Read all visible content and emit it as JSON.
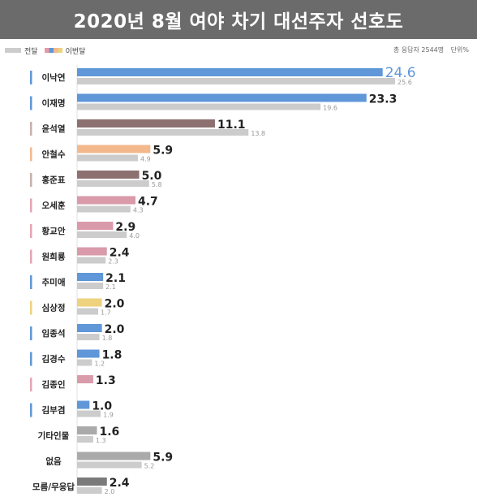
{
  "header": {
    "title": "2020년 8월 여야 차기 대선주자 선호도"
  },
  "legend": {
    "previous_label": "전달",
    "current_label": "이번달"
  },
  "meta": {
    "sample": "총 응답자 2544명",
    "unit": "단위%"
  },
  "chart_data": {
    "type": "bar",
    "orientation": "horizontal",
    "title": "2020년 8월 여야 차기 대선주자 선호도",
    "categories": [
      "이낙연",
      "이재명",
      "윤석열",
      "안철수",
      "홍준표",
      "오세훈",
      "황교안",
      "원희룡",
      "추미애",
      "심상정",
      "임종석",
      "김경수",
      "김종인",
      "김부겸",
      "기타인물",
      "없음",
      "모름/무응답"
    ],
    "series": [
      {
        "name": "이번달",
        "values": [
          24.6,
          23.3,
          11.1,
          5.9,
          5.0,
          4.7,
          2.9,
          2.4,
          2.1,
          2.0,
          2.0,
          1.8,
          1.3,
          1.0,
          1.6,
          5.9,
          2.4
        ]
      },
      {
        "name": "전달",
        "values": [
          25.6,
          19.6,
          13.8,
          4.9,
          5.8,
          4.3,
          4.0,
          2.3,
          2.1,
          1.7,
          1.8,
          1.2,
          null,
          1.9,
          1.3,
          5.2,
          2.0
        ]
      }
    ],
    "current_label_texts": [
      "24.6",
      "23.3",
      "11.1",
      "5.9",
      "5.0",
      "4.7",
      "2.9",
      "2.4",
      "2.1",
      "2.0",
      "2.0",
      "1.8",
      "1.3",
      "1.0",
      "1.6",
      "5.9",
      "2.4"
    ],
    "previous_label_texts": [
      "25.6",
      "19.6",
      "13.8",
      "4.9",
      "5.8",
      "4.3",
      "4.0",
      "2.3",
      "2.1",
      "1.7",
      "1.8",
      "1.2",
      "",
      "1.9",
      "1.3",
      "5.2",
      "2.0"
    ],
    "bar_colors": [
      "#5f97d8",
      "#5f97d8",
      "#8c7170",
      "#f3b98d",
      "#8c7170",
      "#d99aaa",
      "#d99aaa",
      "#d99aaa",
      "#5f97d8",
      "#eed27e",
      "#5f97d8",
      "#5f97d8",
      "#d99aaa",
      "#5f97d8",
      "#aaaaaa",
      "#aaaaaa",
      "#7a7a7a"
    ],
    "marker_colors": [
      "#5f97d8",
      "#5f97d8",
      "#c9b0ab",
      "#f3b98d",
      "#c9b0ab",
      "#e6a4b4",
      "#e6a4b4",
      "#e6a4b4",
      "#5f97d8",
      "#eed27e",
      "#5f97d8",
      "#5f97d8",
      "#e6a4b4",
      "#5f97d8",
      "",
      "",
      ""
    ],
    "previous_color": "#cccccc",
    "highlight_label_color": "#5f97d8",
    "xlim": [
      0,
      25.6
    ],
    "grid": false,
    "legend_position": "top-left"
  }
}
